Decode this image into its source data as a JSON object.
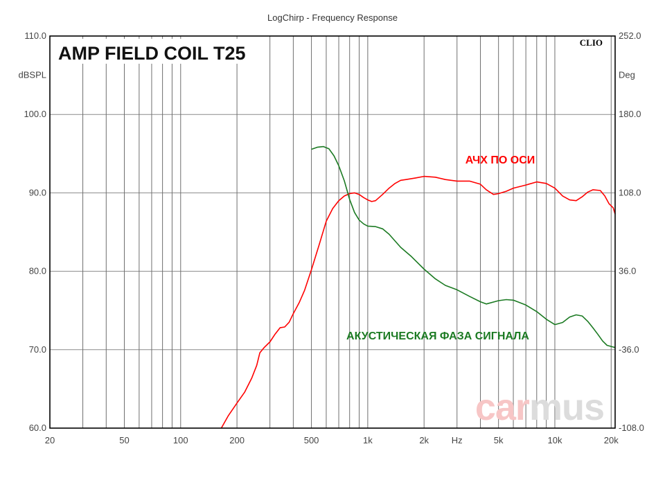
{
  "chart_data": {
    "type": "line",
    "title": "LogChirp - Frequency Response",
    "inner_title": "AMP FIELD COIL T25",
    "logo": "CLIO",
    "watermark_left": "car",
    "watermark_right": "mus",
    "x_unit_label": "Hz",
    "y_left_unit": "dBSPL",
    "y_right_unit": "Deg",
    "x_scale": "log",
    "xlim": [
      20,
      21000
    ],
    "ylim_left": [
      60,
      110
    ],
    "ylim_right": [
      -108,
      252
    ],
    "grid": true,
    "x_ticks": [
      {
        "v": 20,
        "label": "20"
      },
      {
        "v": 50,
        "label": "50"
      },
      {
        "v": 100,
        "label": "100"
      },
      {
        "v": 200,
        "label": "200"
      },
      {
        "v": 500,
        "label": "500"
      },
      {
        "v": 1000,
        "label": "1k"
      },
      {
        "v": 2000,
        "label": "2k"
      },
      {
        "v": 3000,
        "label": "Hz"
      },
      {
        "v": 5000,
        "label": "5k"
      },
      {
        "v": 10000,
        "label": "10k"
      },
      {
        "v": 20000,
        "label": "20k"
      }
    ],
    "y_left_ticks": [
      {
        "v": 110,
        "label": "110.0"
      },
      {
        "v": 100,
        "label": "100.0"
      },
      {
        "v": 90,
        "label": "90.0"
      },
      {
        "v": 80,
        "label": "80.0"
      },
      {
        "v": 70,
        "label": "70.0"
      },
      {
        "v": 60,
        "label": "60.0"
      }
    ],
    "y_right_ticks": [
      {
        "v": 252,
        "label": "252.0"
      },
      {
        "v": 180,
        "label": "180.0"
      },
      {
        "v": 108,
        "label": "108.0"
      },
      {
        "v": 36,
        "label": "36.0"
      },
      {
        "v": -36,
        "label": "-36.0"
      },
      {
        "v": -108,
        "label": "-108.0"
      }
    ],
    "series": [
      {
        "name": "АЧХ ПО ОСИ",
        "axis": "left",
        "color": "#ff0000",
        "points": [
          [
            165,
            60.0
          ],
          [
            180,
            61.6
          ],
          [
            200,
            63.2
          ],
          [
            220,
            64.6
          ],
          [
            240,
            66.4
          ],
          [
            255,
            68.0
          ],
          [
            265,
            69.6
          ],
          [
            280,
            70.3
          ],
          [
            300,
            71.0
          ],
          [
            320,
            72.0
          ],
          [
            340,
            72.8
          ],
          [
            360,
            72.9
          ],
          [
            380,
            73.5
          ],
          [
            400,
            74.6
          ],
          [
            430,
            76.0
          ],
          [
            460,
            77.6
          ],
          [
            500,
            80.2
          ],
          [
            550,
            83.4
          ],
          [
            600,
            86.4
          ],
          [
            650,
            88.0
          ],
          [
            700,
            89.0
          ],
          [
            750,
            89.6
          ],
          [
            800,
            89.9
          ],
          [
            850,
            90.0
          ],
          [
            900,
            89.8
          ],
          [
            950,
            89.4
          ],
          [
            1000,
            89.1
          ],
          [
            1050,
            88.9
          ],
          [
            1100,
            89.0
          ],
          [
            1200,
            89.8
          ],
          [
            1300,
            90.6
          ],
          [
            1400,
            91.2
          ],
          [
            1500,
            91.6
          ],
          [
            1600,
            91.7
          ],
          [
            1800,
            91.9
          ],
          [
            2000,
            92.1
          ],
          [
            2300,
            92.0
          ],
          [
            2600,
            91.7
          ],
          [
            3000,
            91.5
          ],
          [
            3500,
            91.5
          ],
          [
            4000,
            91.1
          ],
          [
            4300,
            90.4
          ],
          [
            4700,
            89.8
          ],
          [
            5000,
            89.9
          ],
          [
            5500,
            90.2
          ],
          [
            6000,
            90.6
          ],
          [
            7000,
            91.0
          ],
          [
            8000,
            91.4
          ],
          [
            9000,
            91.2
          ],
          [
            10000,
            90.6
          ],
          [
            11000,
            89.6
          ],
          [
            12000,
            89.1
          ],
          [
            13000,
            89.0
          ],
          [
            14000,
            89.5
          ],
          [
            15000,
            90.1
          ],
          [
            16000,
            90.4
          ],
          [
            17500,
            90.3
          ],
          [
            18500,
            89.6
          ],
          [
            19500,
            88.6
          ],
          [
            20500,
            88.1
          ],
          [
            21000,
            87.3
          ]
        ]
      },
      {
        "name": "АКУСТИЧЕСКАЯ ФАЗА СИГНАЛА",
        "axis": "right",
        "color": "#1b7a22",
        "points": [
          [
            500,
            148.0
          ],
          [
            540,
            150.0
          ],
          [
            580,
            150.5
          ],
          [
            620,
            148.5
          ],
          [
            660,
            142.0
          ],
          [
            700,
            133.0
          ],
          [
            750,
            119.0
          ],
          [
            800,
            102.0
          ],
          [
            850,
            90.0
          ],
          [
            900,
            83.0
          ],
          [
            950,
            79.5
          ],
          [
            1000,
            77.5
          ],
          [
            1100,
            77.0
          ],
          [
            1200,
            75.0
          ],
          [
            1300,
            70.0
          ],
          [
            1500,
            58.0
          ],
          [
            1700,
            50.0
          ],
          [
            2000,
            38.0
          ],
          [
            2300,
            29.0
          ],
          [
            2600,
            23.0
          ],
          [
            3000,
            19.0
          ],
          [
            3500,
            13.0
          ],
          [
            4000,
            8.0
          ],
          [
            4300,
            6.0
          ],
          [
            5000,
            9.0
          ],
          [
            5500,
            10.0
          ],
          [
            6000,
            9.5
          ],
          [
            7000,
            5.0
          ],
          [
            8000,
            -1.0
          ],
          [
            9000,
            -8.0
          ],
          [
            10000,
            -13.0
          ],
          [
            11000,
            -11.0
          ],
          [
            12000,
            -6.0
          ],
          [
            13000,
            -4.0
          ],
          [
            14000,
            -5.0
          ],
          [
            15000,
            -10.0
          ],
          [
            16000,
            -16.0
          ],
          [
            17000,
            -22.0
          ],
          [
            18000,
            -28.0
          ],
          [
            19000,
            -32.0
          ],
          [
            20000,
            -33.0
          ],
          [
            21000,
            -34.0
          ]
        ]
      }
    ],
    "annotations": [
      {
        "text": "АЧХ ПО ОСИ",
        "color": "#ff0000"
      },
      {
        "text": "АКУСТИЧЕСКАЯ ФАЗА СИГНАЛА",
        "color": "#1b7a22"
      }
    ]
  }
}
